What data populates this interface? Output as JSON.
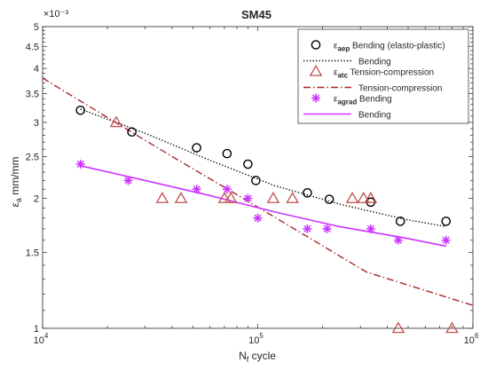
{
  "chart_data": {
    "type": "scatter",
    "title": "SM45",
    "xlabel": "N",
    "xlabel_sub": "f",
    "xlabel_suffix": " cycle",
    "ylabel": "ε",
    "ylabel_sub": "a",
    "ylabel_suffix": " mm/mm",
    "x_scale": "log",
    "y_scale": "log",
    "xlim": [
      10000,
      1000000
    ],
    "ylim": [
      0.001,
      0.005
    ],
    "y_multiplier": "×10⁻³",
    "x_ticks": [
      {
        "value": 10000,
        "base": "10",
        "exp": "4"
      },
      {
        "value": 100000,
        "base": "10",
        "exp": "5"
      },
      {
        "value": 1000000,
        "base": "10",
        "exp": "6"
      }
    ],
    "y_ticks": [
      {
        "value": 0.001,
        "label": "1"
      },
      {
        "value": 0.0015,
        "label": "1.5"
      },
      {
        "value": 0.002,
        "label": "2"
      },
      {
        "value": 0.0025,
        "label": "2.5"
      },
      {
        "value": 0.003,
        "label": "3"
      },
      {
        "value": 0.0035,
        "label": "3.5"
      },
      {
        "value": 0.004,
        "label": "4"
      },
      {
        "value": 0.0045,
        "label": "4.5"
      },
      {
        "value": 0.005,
        "label": "5"
      }
    ],
    "grid": false,
    "legend_position": "top-right",
    "series": [
      {
        "name": "Bending (elasto-plastic)",
        "legend_symbol": "ε",
        "legend_sub": "aep",
        "kind": "scatter",
        "marker": "circle",
        "color": "#000000",
        "points": [
          {
            "x": 15000,
            "y": 0.0032
          },
          {
            "x": 26000,
            "y": 0.00285
          },
          {
            "x": 52000,
            "y": 0.00262
          },
          {
            "x": 72000,
            "y": 0.00254
          },
          {
            "x": 90000,
            "y": 0.0024
          },
          {
            "x": 98000,
            "y": 0.0022
          },
          {
            "x": 170000,
            "y": 0.00206
          },
          {
            "x": 215000,
            "y": 0.00199
          },
          {
            "x": 335000,
            "y": 0.00196
          },
          {
            "x": 460000,
            "y": 0.00177
          },
          {
            "x": 750000,
            "y": 0.00177
          }
        ]
      },
      {
        "name": "Bending",
        "kind": "line",
        "style": "dotted",
        "color": "#000000",
        "points": [
          {
            "x": 15000,
            "y": 0.00322
          },
          {
            "x": 30000,
            "y": 0.00283
          },
          {
            "x": 60000,
            "y": 0.00245
          },
          {
            "x": 120000,
            "y": 0.00214
          },
          {
            "x": 240000,
            "y": 0.00194
          },
          {
            "x": 480000,
            "y": 0.00179
          },
          {
            "x": 750000,
            "y": 0.00172
          }
        ]
      },
      {
        "name": "Tension-compression",
        "legend_symbol": "ε",
        "legend_sub": "atc",
        "kind": "scatter",
        "marker": "triangle",
        "color": "#c0504d",
        "points": [
          {
            "x": 22000,
            "y": 0.003
          },
          {
            "x": 36000,
            "y": 0.002
          },
          {
            "x": 44000,
            "y": 0.002
          },
          {
            "x": 70000,
            "y": 0.002
          },
          {
            "x": 75000,
            "y": 0.002
          },
          {
            "x": 118000,
            "y": 0.002
          },
          {
            "x": 145000,
            "y": 0.002
          },
          {
            "x": 275000,
            "y": 0.002
          },
          {
            "x": 310000,
            "y": 0.002
          },
          {
            "x": 335000,
            "y": 0.002
          },
          {
            "x": 450000,
            "y": 0.001
          },
          {
            "x": 800000,
            "y": 0.001
          }
        ]
      },
      {
        "name": "Tension-compression",
        "kind": "line",
        "style": "dashdot",
        "color": "#a52a2a",
        "points": [
          {
            "x": 10000,
            "y": 0.0038
          },
          {
            "x": 20000,
            "y": 0.00308
          },
          {
            "x": 40000,
            "y": 0.0025
          },
          {
            "x": 80000,
            "y": 0.00204
          },
          {
            "x": 160000,
            "y": 0.00166
          },
          {
            "x": 320000,
            "y": 0.00135
          },
          {
            "x": 1000000,
            "y": 0.00113
          }
        ]
      },
      {
        "name": "Bending",
        "legend_symbol": "ε",
        "legend_sub": "agrad",
        "kind": "scatter",
        "marker": "asterisk",
        "color": "#cc33ff",
        "points": [
          {
            "x": 15000,
            "y": 0.0024
          },
          {
            "x": 25000,
            "y": 0.0022
          },
          {
            "x": 52000,
            "y": 0.0021
          },
          {
            "x": 72000,
            "y": 0.0021
          },
          {
            "x": 90000,
            "y": 0.002
          },
          {
            "x": 100000,
            "y": 0.0018
          },
          {
            "x": 170000,
            "y": 0.0017
          },
          {
            "x": 210000,
            "y": 0.0017
          },
          {
            "x": 335000,
            "y": 0.0017
          },
          {
            "x": 450000,
            "y": 0.0016
          },
          {
            "x": 750000,
            "y": 0.0016
          }
        ]
      },
      {
        "name": "Bending",
        "kind": "line",
        "style": "solid",
        "color": "#cc33ff",
        "points": [
          {
            "x": 15000,
            "y": 0.00238
          },
          {
            "x": 30000,
            "y": 0.0022
          },
          {
            "x": 60000,
            "y": 0.00203
          },
          {
            "x": 120000,
            "y": 0.00186
          },
          {
            "x": 240000,
            "y": 0.00172
          },
          {
            "x": 480000,
            "y": 0.00162
          },
          {
            "x": 750000,
            "y": 0.00155
          }
        ]
      }
    ]
  }
}
